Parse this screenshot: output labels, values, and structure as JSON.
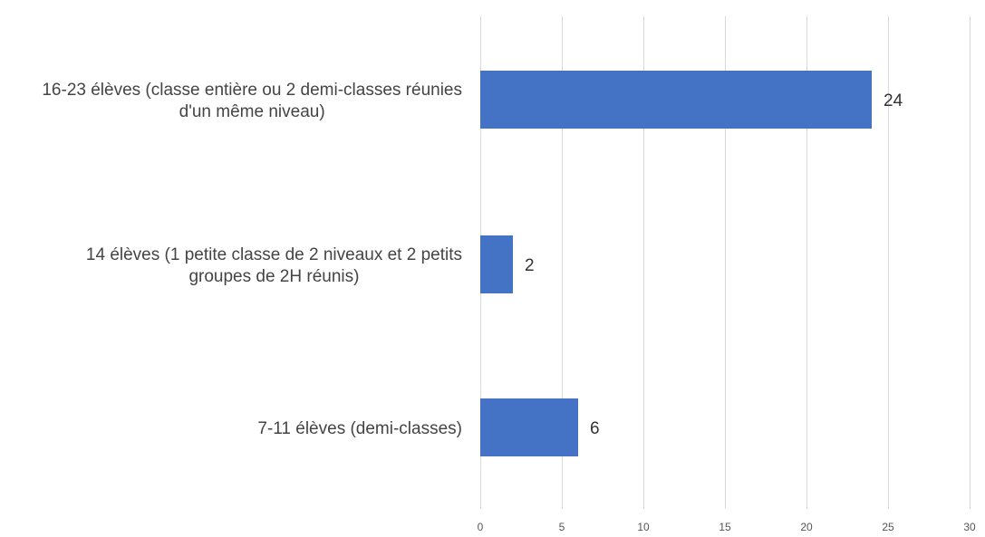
{
  "chart_data": {
    "type": "bar",
    "orientation": "horizontal",
    "categories": [
      [
        "16-23 élèves (classe entière ou 2 demi-classes réunies",
        "d'un même niveau)"
      ],
      [
        "14 élèves (1 petite classe de 2 niveaux et 2 petits",
        "groupes de 2H réunis)"
      ],
      [
        "7-11 élèves (demi-classes)"
      ]
    ],
    "values": [
      24,
      2,
      6
    ],
    "data_labels": [
      "24",
      "2",
      "6"
    ],
    "xlim": [
      0,
      30
    ],
    "x_ticks": [
      0,
      5,
      10,
      15,
      20,
      25,
      30
    ],
    "x_tick_labels": [
      "0",
      "5",
      "10",
      "15",
      "20",
      "25",
      "30"
    ],
    "title": "",
    "xlabel": "",
    "ylabel": "",
    "grid": "vertical",
    "legend": "none",
    "bar_color": "#4472C4"
  }
}
